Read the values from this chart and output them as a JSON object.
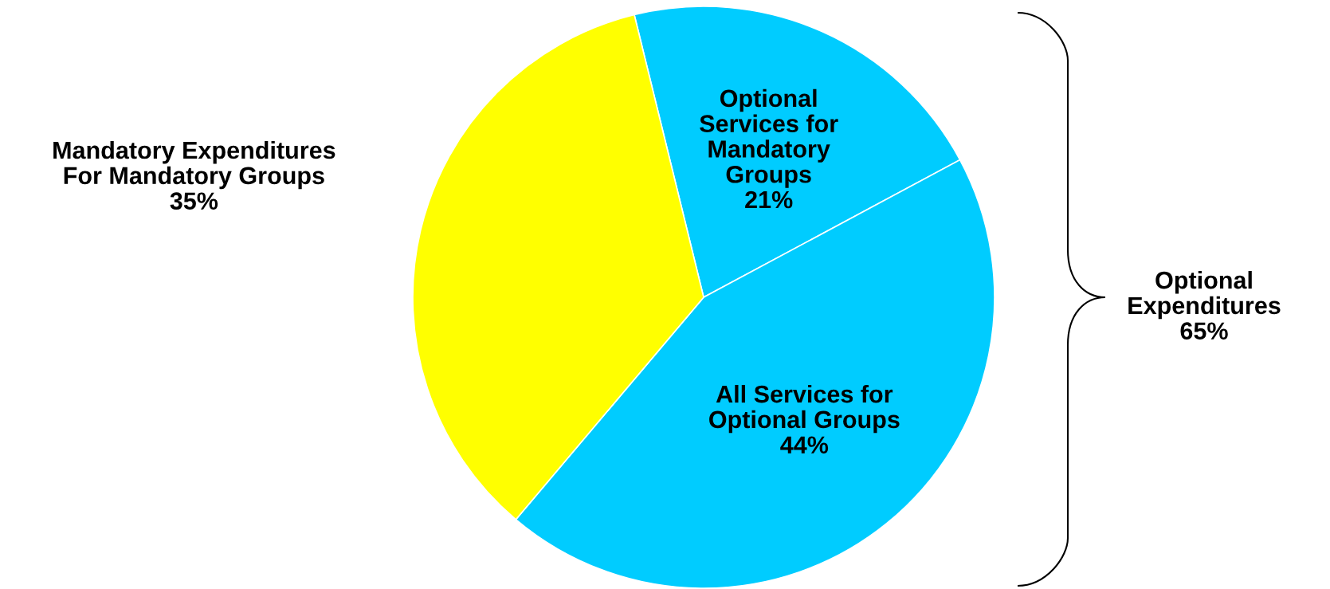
{
  "chart_data": {
    "type": "pie",
    "categories": [
      "Optional\nServices for\nMandatory\nGroups",
      "All Services for\nOptional Groups",
      "Mandatory Expenditures\nFor Mandatory Groups"
    ],
    "values": [
      21,
      44,
      35
    ],
    "value_labels": [
      "21%",
      "44%",
      "35%"
    ],
    "colors": [
      "#00ccff",
      "#00ccff",
      "#ffff00"
    ],
    "annotations": [
      "Optional\nExpenditures\n65%"
    ]
  }
}
